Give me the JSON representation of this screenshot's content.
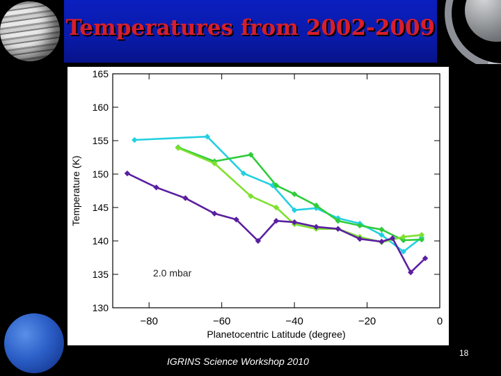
{
  "slide": {
    "title": "Temperatures from 2002-2009",
    "footer": "IGRINS Science Workshop 2010",
    "page_number": "18"
  },
  "chart_data": {
    "type": "line",
    "title": "",
    "xlabel": "Planetocentric Latitude (degree)",
    "ylabel": "Temperature (K)",
    "xlim": [
      -90,
      0
    ],
    "ylim": [
      130,
      165
    ],
    "xticks": [
      -80,
      -60,
      -40,
      -20,
      0
    ],
    "xtick_labels": [
      "−80",
      "−60",
      "−40",
      "−20",
      "0"
    ],
    "yticks": [
      130,
      135,
      140,
      145,
      150,
      155,
      160,
      165
    ],
    "annotation": "2.0 mbar",
    "series": [
      {
        "name": "cyan",
        "color": "#22d0e0",
        "x": [
          -84,
          -64,
          -54,
          -46,
          -40,
          -34,
          -28,
          -22,
          -16,
          -10,
          -5
        ],
        "y": [
          155.1,
          155.6,
          150.1,
          148.3,
          144.6,
          144.9,
          143.4,
          142.6,
          140.9,
          138.4,
          140.5
        ]
      },
      {
        "name": "green",
        "color": "#2ecc3a",
        "x": [
          -72,
          -62,
          -52,
          -45,
          -40,
          -34,
          -28,
          -22,
          -16,
          -10,
          -5
        ],
        "y": [
          154,
          151.9,
          152.9,
          148.3,
          147,
          145.3,
          143,
          142.3,
          141.7,
          140.1,
          140.2
        ]
      },
      {
        "name": "lime",
        "color": "#7ee030",
        "x": [
          -72,
          -62,
          -52,
          -45,
          -40,
          -34,
          -28,
          -22,
          -16,
          -10,
          -5
        ],
        "y": [
          153.9,
          151.6,
          146.7,
          145,
          142.5,
          141.8,
          141.8,
          140.6,
          139.8,
          140.6,
          140.9
        ]
      },
      {
        "name": "purple",
        "color": "#5a1fa0",
        "x": [
          -86,
          -78,
          -70,
          -62,
          -56,
          -50,
          -45,
          -40,
          -34,
          -28,
          -22,
          -16,
          -13,
          -8,
          -4
        ],
        "y": [
          150.1,
          148,
          146.4,
          144.1,
          143.2,
          140,
          143,
          142.8,
          142.1,
          141.8,
          140.3,
          139.9,
          140.4,
          135.3,
          137.4
        ]
      }
    ]
  }
}
